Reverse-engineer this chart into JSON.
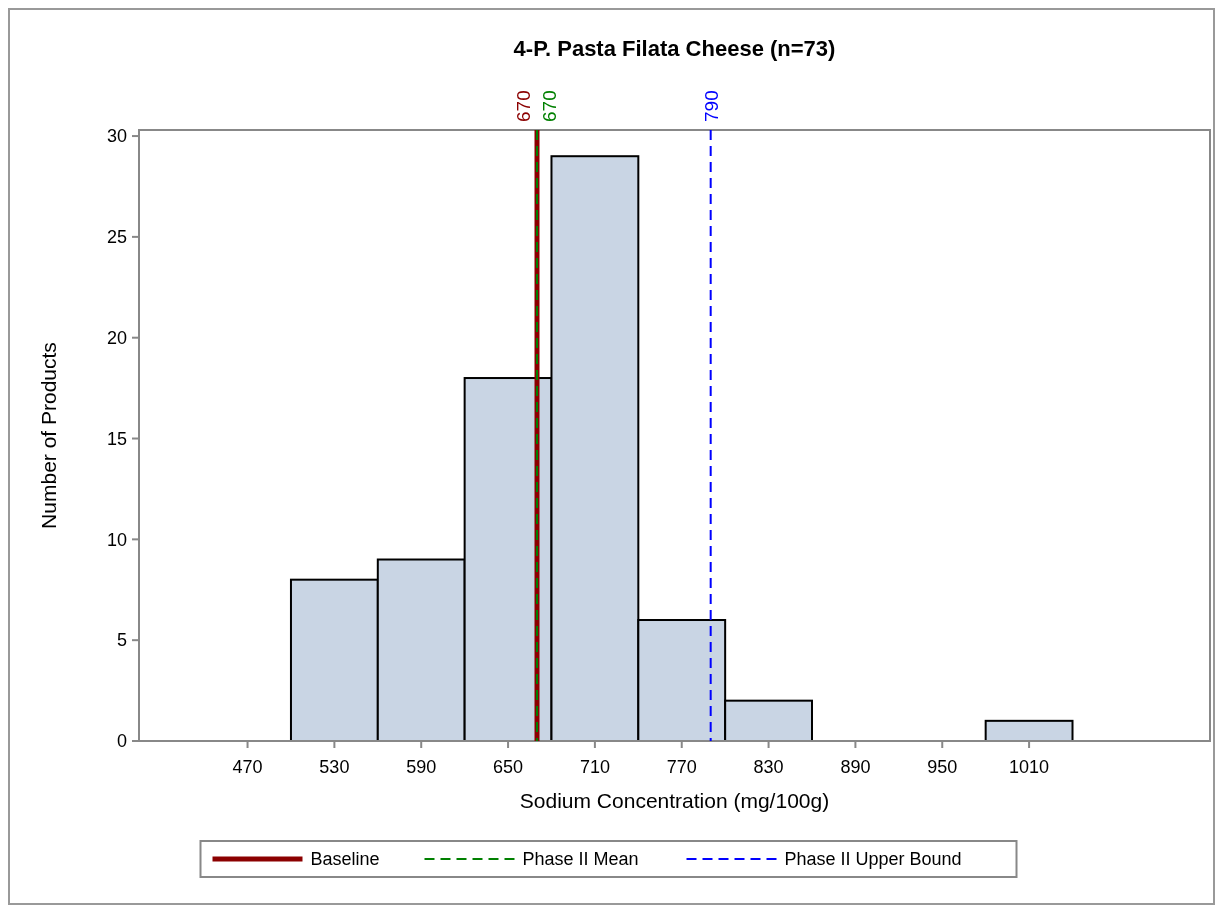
{
  "chart_data": {
    "type": "histogram",
    "title": "4-P. Pasta Filata Cheese (n=73)",
    "xlabel": "Sodium Concentration (mg/100g)",
    "ylabel": "Number of Products",
    "bins": [
      440,
      500,
      560,
      620,
      680,
      740,
      800,
      860,
      920,
      980,
      1040
    ],
    "values": [
      0,
      8,
      9,
      18,
      29,
      6,
      2,
      0,
      0,
      1
    ],
    "color": "#c9d5e4",
    "xlim": [
      395,
      1135
    ],
    "xticks": [
      470,
      530,
      590,
      650,
      710,
      770,
      830,
      890,
      950,
      1010
    ],
    "ylim": [
      0,
      30.3
    ],
    "yticks": [
      0,
      5,
      10,
      15,
      20,
      25,
      30
    ],
    "ref_lines": [
      {
        "axis": "x",
        "value": 670,
        "label": "Baseline",
        "color": "#8b0000",
        "line_style": "solid"
      },
      {
        "axis": "x",
        "value": 670,
        "label": "Phase II Mean",
        "color": "#008000",
        "line_style": "dashed"
      },
      {
        "axis": "x",
        "value": 790,
        "label": "Phase II Upper Bound",
        "color": "#0000ff",
        "line_style": "dashed"
      }
    ],
    "annotations": [
      "670",
      "670",
      "790"
    ],
    "legend": "bottom",
    "grid": false
  }
}
